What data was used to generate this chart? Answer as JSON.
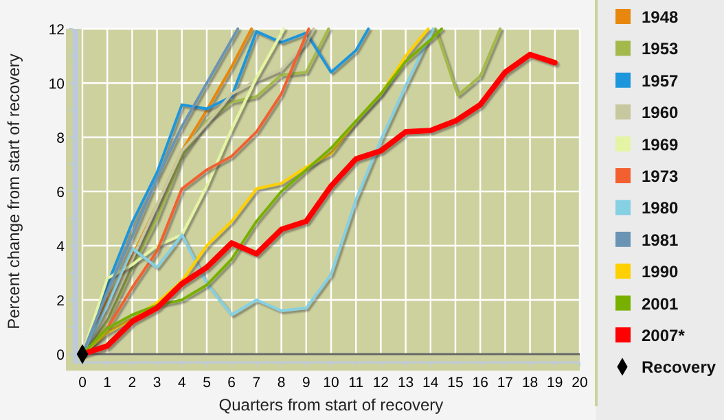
{
  "chart_data": {
    "type": "line",
    "xlabel": "Quarters from start of recovery",
    "ylabel": "Percent change from start of recovery",
    "xlim": [
      0,
      20
    ],
    "xticks": [
      0,
      1,
      2,
      3,
      4,
      5,
      6,
      7,
      8,
      9,
      10,
      11,
      12,
      13,
      14,
      15,
      16,
      17,
      18,
      19,
      20
    ],
    "ylim": [
      0,
      12
    ],
    "yticks": [
      0,
      {
        "value": 1,
        "label": null
      },
      2,
      {
        "value": 3,
        "label": null
      },
      4,
      {
        "value": 5,
        "label": null
      },
      6,
      {
        "value": 7,
        "label": null
      },
      8,
      {
        "value": 9,
        "label": null
      },
      10,
      {
        "value": 11,
        "label": null
      },
      12
    ],
    "grid": true,
    "legend": "right",
    "marker": "none",
    "line_style": "solid",
    "series": [
      {
        "name": "1948",
        "color": "#e8870e",
        "x": [
          0,
          1,
          2,
          3,
          4,
          5,
          6,
          6.8
        ],
        "values": [
          0,
          2.0,
          3.6,
          5.5,
          7.5,
          9.0,
          10.6,
          12
        ]
      },
      {
        "name": "1953",
        "color": "#a4b94c",
        "x": [
          0,
          1,
          2,
          3,
          4,
          5,
          6,
          7,
          8,
          9,
          9.9,
          12,
          14.2,
          15.1,
          16,
          16.8
        ],
        "values": [
          0,
          1.2,
          3.2,
          5.0,
          7.3,
          8.6,
          9.3,
          9.5,
          10.3,
          10.4,
          12,
          null,
          12,
          9.55,
          10.25,
          12
        ]
      },
      {
        "name": "1957",
        "color": "#1e96dc",
        "x": [
          0,
          1,
          2,
          3,
          4,
          5,
          6,
          7,
          8,
          9,
          10,
          11,
          11.5
        ],
        "values": [
          0,
          2.55,
          4.85,
          6.7,
          9.2,
          9.05,
          9.5,
          11.9,
          11.5,
          11.85,
          10.4,
          11.2,
          12
        ]
      },
      {
        "name": "1960",
        "color": "#c8c8a0",
        "x": [
          0,
          1,
          2,
          3,
          4,
          5,
          6,
          7,
          8,
          9,
          9.3
        ],
        "values": [
          0,
          1.5,
          3.5,
          5.5,
          7.5,
          8.5,
          9.6,
          10.1,
          10.5,
          11.5,
          12
        ]
      },
      {
        "name": "1969",
        "color": "#e4f4a4",
        "x": [
          0,
          1,
          2,
          3,
          4,
          5,
          6,
          7,
          8.1
        ],
        "values": [
          0,
          2.8,
          3.3,
          4.0,
          4.4,
          6.2,
          8.3,
          10.2,
          12
        ]
      },
      {
        "name": "1973",
        "color": "#f26030",
        "x": [
          0,
          1,
          2,
          3,
          4,
          5,
          6,
          7,
          8,
          9.1
        ],
        "values": [
          0,
          0.95,
          2.45,
          3.8,
          6.1,
          6.8,
          7.3,
          8.2,
          9.6,
          12
        ]
      },
      {
        "name": "1980",
        "color": "#86d0e4",
        "x": [
          0,
          1,
          2,
          3,
          4,
          5,
          6,
          7,
          8,
          9,
          10,
          11,
          12,
          13,
          14.1
        ],
        "values": [
          0,
          1.8,
          3.9,
          3.2,
          4.4,
          2.6,
          1.45,
          2.0,
          1.6,
          1.7,
          2.95,
          5.7,
          7.9,
          9.9,
          12
        ]
      },
      {
        "name": "1981",
        "color": "#6a94b4",
        "x": [
          0,
          1,
          2,
          3,
          4,
          5,
          6,
          6.25
        ],
        "values": [
          0,
          2.3,
          4.35,
          6.5,
          8.4,
          10.0,
          11.6,
          12
        ]
      },
      {
        "name": "1990",
        "color": "#ffd000",
        "x": [
          0,
          1,
          2,
          3,
          4,
          5,
          6,
          7,
          8,
          9,
          10,
          11,
          12,
          13,
          13.9
        ],
        "values": [
          0,
          0.8,
          1.3,
          1.9,
          2.7,
          4.0,
          4.9,
          6.1,
          6.3,
          6.9,
          7.4,
          8.6,
          9.6,
          11.0,
          12
        ]
      },
      {
        "name": "2001",
        "color": "#78b000",
        "x": [
          0,
          1,
          2,
          3,
          4,
          5,
          6,
          7,
          8,
          9,
          10,
          11,
          12,
          13,
          14,
          14.45
        ],
        "values": [
          0,
          0.95,
          1.45,
          1.8,
          2.0,
          2.55,
          3.5,
          4.9,
          6.0,
          6.8,
          7.6,
          8.6,
          9.6,
          10.8,
          11.6,
          12
        ]
      },
      {
        "name": "2007*",
        "color": "#ff0000",
        "x": [
          0,
          1,
          2,
          3,
          4,
          5,
          6,
          7,
          8,
          9,
          10,
          11,
          12,
          13,
          14,
          15,
          16,
          17,
          18,
          19
        ],
        "values": [
          0,
          0.3,
          1.2,
          1.7,
          2.6,
          3.2,
          4.1,
          3.7,
          4.6,
          4.9,
          6.2,
          7.2,
          7.5,
          8.2,
          8.25,
          8.6,
          9.2,
          10.4,
          11.05,
          10.75
        ]
      },
      {
        "name": "Recovery",
        "type": "scatter",
        "marker": "diamond",
        "color": "#000000",
        "x": [
          0
        ],
        "values": [
          0
        ]
      }
    ]
  }
}
